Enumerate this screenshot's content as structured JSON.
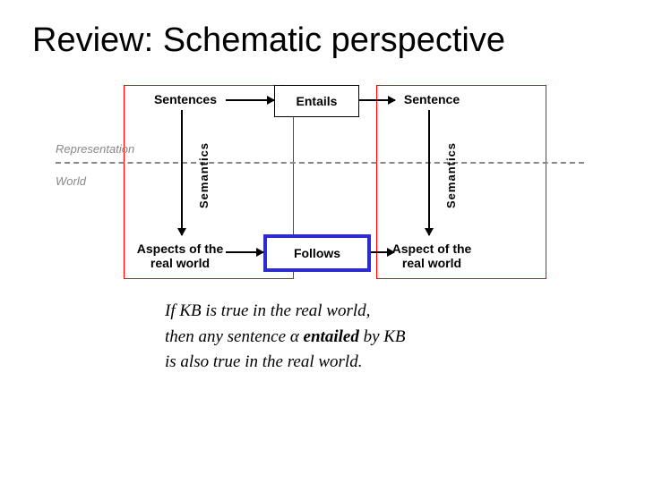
{
  "title": "Review: Schematic perspective",
  "diagram": {
    "type": "flowchart",
    "background_color": "#ffffff",
    "redbox_border": "#ff0000",
    "follows_border": "#2b2bd0",
    "dashed_color": "#888888",
    "side_labels": {
      "representation": "Representation",
      "world": "World"
    },
    "nodes": {
      "sentences": "Sentences",
      "sentence": "Sentence",
      "entails": "Entails",
      "follows": "Follows",
      "aspects_l_line1": "Aspects of the",
      "aspects_l_line2": "real world",
      "aspect_r_line1": "Aspect of the",
      "aspect_r_line2": "real world",
      "semantics": "Semantics"
    },
    "font": {
      "title_size": 38,
      "node_size": 14,
      "side_size": 13,
      "node_weight": "bold"
    }
  },
  "caption": {
    "l1a": "If KB is true in the real world,",
    "l2a": "then any sentence ",
    "alpha": "α",
    "entailed": " entailed",
    "l2b": " by KB",
    "l3a": "is also true in the real world."
  }
}
